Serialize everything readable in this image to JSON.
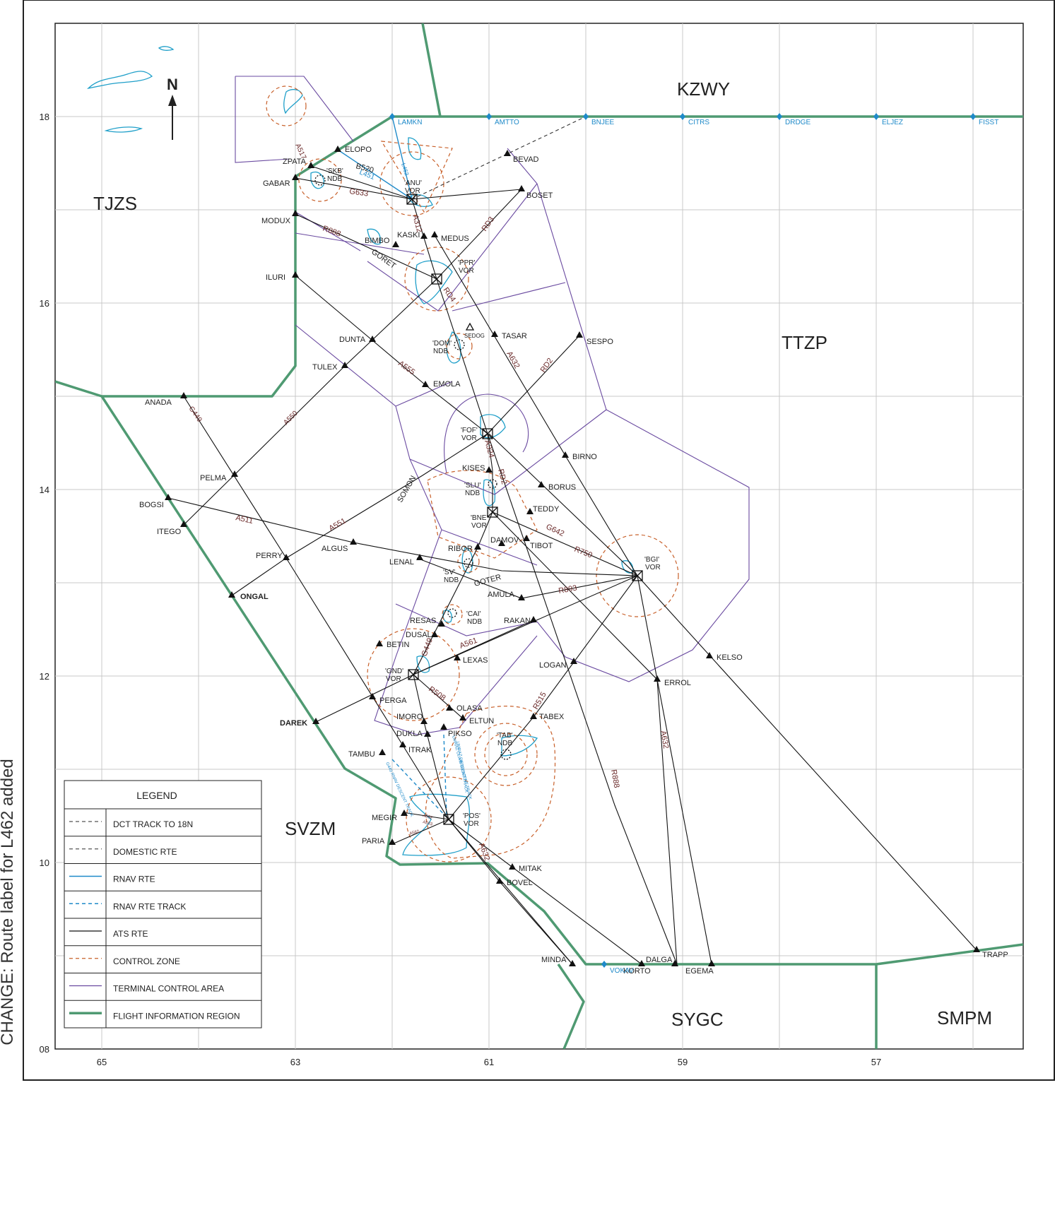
{
  "change_note": "CHANGE: Route label for L462 added",
  "north_label": "N",
  "fir_labels": [
    {
      "id": "kzwy",
      "text": "KZWY"
    },
    {
      "id": "tjzs",
      "text": "TJZS"
    },
    {
      "id": "ttzp",
      "text": "TTZP"
    },
    {
      "id": "svzm",
      "text": "SVZM"
    },
    {
      "id": "sygc",
      "text": "SYGC"
    },
    {
      "id": "smpm",
      "text": "SMPM"
    }
  ],
  "lat_labels": [
    "18",
    "16",
    "14",
    "12",
    "10",
    "08"
  ],
  "lon_labels": [
    "65",
    "63",
    "61",
    "59",
    "57"
  ],
  "boundary_fixes": [
    "LAMKN",
    "AMTTO",
    "BNJEE",
    "CITRS",
    "DRDGE",
    "ELJEZ",
    "FISST",
    "VOKAV"
  ],
  "waypoints": [
    "ELOPO",
    "ZPATA",
    "GABAR",
    "BEVAD",
    "BOSET",
    "MODUX",
    "KASKI",
    "MEDUS",
    "BIMBO",
    "ILURI",
    "DUNTA",
    "TASAR",
    "SESPO",
    "TULEX",
    "EMOLA",
    "ANADA",
    "PELMA",
    "KISES",
    "BORUS",
    "BIRNO",
    "BOGSI",
    "ITEGO",
    "TEDDY",
    "TIBOT",
    "DAMOV",
    "ALGUS",
    "PERRY",
    "RIBOR",
    "LENAL",
    "AMULA",
    "ONGAL",
    "RESAS",
    "DUSAL",
    "RAKAN",
    "BETIN",
    "LEXAS",
    "LOGAN",
    "KELSO",
    "ERROL",
    "PERGA",
    "OLASA",
    "TABEX",
    "DAREK",
    "IMORO",
    "ELTUN",
    "PIKSO",
    "DUKLA",
    "ITRAK",
    "TAMBU",
    "MEGIR",
    "PARIA",
    "MITAK",
    "BOVEL",
    "MINDA",
    "KORTO",
    "DALGA",
    "EGEMA",
    "TRAPP",
    "SEDOG",
    "GORET",
    "SOMON",
    "GOTER"
  ],
  "navaids": [
    {
      "id": "anu",
      "name": "'ANU'",
      "kind": "VOR"
    },
    {
      "id": "skb",
      "name": "'SKB'",
      "kind": "NDB"
    },
    {
      "id": "ppr",
      "name": "'PPR'",
      "kind": "VOR"
    },
    {
      "id": "dom",
      "name": "'DOM'",
      "kind": "NDB"
    },
    {
      "id": "fof",
      "name": "'FOF'",
      "kind": "VOR"
    },
    {
      "id": "slu",
      "name": "'SLU'",
      "kind": "NDB"
    },
    {
      "id": "bne",
      "name": "'BNE'",
      "kind": "VOR"
    },
    {
      "id": "bgi",
      "name": "'BGI'",
      "kind": "VOR"
    },
    {
      "id": "sv",
      "name": "'SV'",
      "kind": "NDB"
    },
    {
      "id": "cai",
      "name": "'CAI'",
      "kind": "NDB"
    },
    {
      "id": "gnd",
      "name": "'GND'",
      "kind": "VOR"
    },
    {
      "id": "tab",
      "name": "'TAB'",
      "kind": "NDB"
    },
    {
      "id": "pos",
      "name": "'POS'",
      "kind": "VOR"
    }
  ],
  "route_labels": [
    "B520",
    "L451",
    "L462",
    "A517",
    "G633",
    "A312",
    "R888",
    "RD3",
    "RD4",
    "A555",
    "A632",
    "RD2",
    "A550",
    "G449",
    "A324",
    "A511",
    "A551",
    "G642",
    "R750",
    "R893",
    "A561",
    "R508",
    "R515",
    "A552",
    "A563",
    "A562",
    "UMRAZ DESCENT TRACK",
    "G449 RNAV DESCENT TRACK",
    "UMRAZ CLIMB DESCENT TRACK"
  ],
  "legend": {
    "title": "LEGEND",
    "items": [
      {
        "label": "DCT TRACK TO 18N",
        "color": "#555555",
        "dash": "5,4",
        "width": 1.2
      },
      {
        "label": "DOMESTIC RTE",
        "color": "#555555",
        "dash": "5,4",
        "width": 1.2
      },
      {
        "label": "RNAV RTE",
        "color": "#1f8ac9",
        "dash": "",
        "width": 1.4
      },
      {
        "label": "RNAV RTE TRACK",
        "color": "#1f8ac9",
        "dash": "5,4",
        "width": 1.4
      },
      {
        "label": "ATS RTE",
        "color": "#111111",
        "dash": "",
        "width": 1.2
      },
      {
        "label": "CONTROL ZONE",
        "color": "#c8602a",
        "dash": "5,4",
        "width": 1.2
      },
      {
        "label": "TERMINAL CONTROL AREA",
        "color": "#6a4aa0",
        "dash": "",
        "width": 1.2
      },
      {
        "label": "FLIGHT INFORMATION REGION",
        "color": "#4f9a72",
        "dash": "",
        "width": 3.5
      }
    ]
  },
  "colors": {
    "fir": "#4f9a72",
    "tca": "#6a4aa0",
    "control_zone": "#c8602a",
    "rnav": "#1f8ac9",
    "ats": "#111111",
    "route_label": "#6b2a2a",
    "grid": "#c9c9c9"
  }
}
